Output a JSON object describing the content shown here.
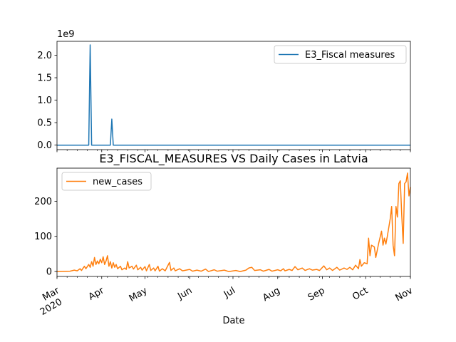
{
  "chart_data": [
    {
      "type": "line",
      "title": "",
      "xlabel": "",
      "ylabel": "",
      "y_offset_label": "1e9",
      "ylim": [
        -0.1,
        2.31
      ],
      "yticks": [
        {
          "v": 0.0,
          "label": "0.0"
        },
        {
          "v": 0.5,
          "label": "0.5"
        },
        {
          "v": 1.0,
          "label": "1.0"
        },
        {
          "v": 1.5,
          "label": "1.5"
        },
        {
          "v": 2.0,
          "label": "2.0"
        }
      ],
      "legend": "top-right",
      "x_start": "2020-03-01",
      "x_end": "2020-11-01",
      "series": [
        {
          "name": "E3_Fiscal measures",
          "color": "#1f77b4",
          "points": [
            [
              "2020-03-01",
              0
            ],
            [
              "2020-03-23",
              0
            ],
            [
              "2020-03-24",
              2.23
            ],
            [
              "2020-03-25",
              0
            ],
            [
              "2020-04-07",
              0
            ],
            [
              "2020-04-08",
              0.58
            ],
            [
              "2020-04-09",
              0
            ],
            [
              "2020-11-01",
              0
            ]
          ]
        }
      ]
    },
    {
      "type": "line",
      "title": "E3_FISCAL_MEASURES VS Daily Cases in Latvia",
      "xlabel": "Date",
      "ylabel": "",
      "ylim": [
        -14,
        294
      ],
      "yticks": [
        {
          "v": 0,
          "label": "0"
        },
        {
          "v": 100,
          "label": "100"
        },
        {
          "v": 200,
          "label": "200"
        }
      ],
      "legend": "top-left",
      "x_start": "2020-03-01",
      "x_end": "2020-11-01",
      "xticks": [
        {
          "date": "2020-03-01",
          "label": "Mar",
          "sub": "2020"
        },
        {
          "date": "2020-04-01",
          "label": "Apr"
        },
        {
          "date": "2020-05-01",
          "label": "May"
        },
        {
          "date": "2020-06-01",
          "label": "Jun"
        },
        {
          "date": "2020-07-01",
          "label": "Jul"
        },
        {
          "date": "2020-08-01",
          "label": "Aug"
        },
        {
          "date": "2020-09-01",
          "label": "Sep"
        },
        {
          "date": "2020-10-01",
          "label": "Oct"
        },
        {
          "date": "2020-11-01",
          "label": "Nov"
        }
      ],
      "series": [
        {
          "name": "new_cases",
          "color": "#ff7f0e",
          "points": [
            [
              "2020-03-01",
              0
            ],
            [
              "2020-03-10",
              1
            ],
            [
              "2020-03-13",
              4
            ],
            [
              "2020-03-15",
              2
            ],
            [
              "2020-03-17",
              8
            ],
            [
              "2020-03-18",
              3
            ],
            [
              "2020-03-20",
              15
            ],
            [
              "2020-03-21",
              8
            ],
            [
              "2020-03-23",
              20
            ],
            [
              "2020-03-24",
              12
            ],
            [
              "2020-03-25",
              28
            ],
            [
              "2020-03-26",
              15
            ],
            [
              "2020-03-27",
              40
            ],
            [
              "2020-03-28",
              20
            ],
            [
              "2020-03-29",
              30
            ],
            [
              "2020-03-30",
              22
            ],
            [
              "2020-03-31",
              35
            ],
            [
              "2020-04-01",
              25
            ],
            [
              "2020-04-02",
              42
            ],
            [
              "2020-04-03",
              20
            ],
            [
              "2020-04-04",
              30
            ],
            [
              "2020-04-05",
              45
            ],
            [
              "2020-04-06",
              15
            ],
            [
              "2020-04-07",
              28
            ],
            [
              "2020-04-08",
              10
            ],
            [
              "2020-04-09",
              25
            ],
            [
              "2020-04-10",
              12
            ],
            [
              "2020-04-11",
              20
            ],
            [
              "2020-04-12",
              8
            ],
            [
              "2020-04-14",
              15
            ],
            [
              "2020-04-15",
              5
            ],
            [
              "2020-04-17",
              10
            ],
            [
              "2020-04-18",
              6
            ],
            [
              "2020-04-19",
              28
            ],
            [
              "2020-04-20",
              10
            ],
            [
              "2020-04-22",
              15
            ],
            [
              "2020-04-23",
              7
            ],
            [
              "2020-04-25",
              18
            ],
            [
              "2020-04-26",
              5
            ],
            [
              "2020-04-28",
              12
            ],
            [
              "2020-04-29",
              4
            ],
            [
              "2020-05-01",
              14
            ],
            [
              "2020-05-02",
              2
            ],
            [
              "2020-05-04",
              20
            ],
            [
              "2020-05-05",
              3
            ],
            [
              "2020-05-07",
              10
            ],
            [
              "2020-05-08",
              2
            ],
            [
              "2020-05-10",
              15
            ],
            [
              "2020-05-11",
              1
            ],
            [
              "2020-05-13",
              8
            ],
            [
              "2020-05-15",
              2
            ],
            [
              "2020-05-18",
              26
            ],
            [
              "2020-05-19",
              3
            ],
            [
              "2020-05-21",
              10
            ],
            [
              "2020-05-22",
              2
            ],
            [
              "2020-05-25",
              8
            ],
            [
              "2020-05-27",
              2
            ],
            [
              "2020-06-01",
              6
            ],
            [
              "2020-06-03",
              1
            ],
            [
              "2020-06-06",
              4
            ],
            [
              "2020-06-09",
              1
            ],
            [
              "2020-06-12",
              7
            ],
            [
              "2020-06-14",
              0
            ],
            [
              "2020-06-18",
              5
            ],
            [
              "2020-06-20",
              1
            ],
            [
              "2020-06-25",
              4
            ],
            [
              "2020-06-28",
              0
            ],
            [
              "2020-07-03",
              3
            ],
            [
              "2020-07-06",
              0
            ],
            [
              "2020-07-10",
              4
            ],
            [
              "2020-07-12",
              10
            ],
            [
              "2020-07-14",
              12
            ],
            [
              "2020-07-16",
              3
            ],
            [
              "2020-07-20",
              5
            ],
            [
              "2020-07-22",
              1
            ],
            [
              "2020-07-26",
              6
            ],
            [
              "2020-07-28",
              1
            ],
            [
              "2020-08-01",
              5
            ],
            [
              "2020-08-03",
              2
            ],
            [
              "2020-08-05",
              8
            ],
            [
              "2020-08-06",
              2
            ],
            [
              "2020-08-09",
              6
            ],
            [
              "2020-08-11",
              3
            ],
            [
              "2020-08-13",
              14
            ],
            [
              "2020-08-15",
              5
            ],
            [
              "2020-08-18",
              10
            ],
            [
              "2020-08-20",
              3
            ],
            [
              "2020-08-23",
              8
            ],
            [
              "2020-08-25",
              4
            ],
            [
              "2020-08-28",
              6
            ],
            [
              "2020-08-30",
              3
            ],
            [
              "2020-09-02",
              16
            ],
            [
              "2020-09-04",
              5
            ],
            [
              "2020-09-06",
              10
            ],
            [
              "2020-09-08",
              3
            ],
            [
              "2020-09-11",
              12
            ],
            [
              "2020-09-13",
              4
            ],
            [
              "2020-09-16",
              10
            ],
            [
              "2020-09-18",
              6
            ],
            [
              "2020-09-20",
              12
            ],
            [
              "2020-09-22",
              5
            ],
            [
              "2020-09-24",
              18
            ],
            [
              "2020-09-26",
              8
            ],
            [
              "2020-09-27",
              34
            ],
            [
              "2020-09-28",
              15
            ],
            [
              "2020-09-30",
              25
            ],
            [
              "2020-10-02",
              22
            ],
            [
              "2020-10-03",
              95
            ],
            [
              "2020-10-04",
              45
            ],
            [
              "2020-10-05",
              75
            ],
            [
              "2020-10-07",
              70
            ],
            [
              "2020-10-08",
              40
            ],
            [
              "2020-10-10",
              80
            ],
            [
              "2020-10-12",
              115
            ],
            [
              "2020-10-13",
              75
            ],
            [
              "2020-10-14",
              95
            ],
            [
              "2020-10-15",
              78
            ],
            [
              "2020-10-16",
              100
            ],
            [
              "2020-10-18",
              150
            ],
            [
              "2020-10-19",
              185
            ],
            [
              "2020-10-20",
              75
            ],
            [
              "2020-10-21",
              45
            ],
            [
              "2020-10-22",
              185
            ],
            [
              "2020-10-23",
              155
            ],
            [
              "2020-10-24",
              250
            ],
            [
              "2020-10-25",
              258
            ],
            [
              "2020-10-26",
              160
            ],
            [
              "2020-10-27",
              80
            ],
            [
              "2020-10-28",
              250
            ],
            [
              "2020-10-29",
              255
            ],
            [
              "2020-10-30",
              280
            ],
            [
              "2020-10-31",
              215
            ],
            [
              "2020-11-01",
              240
            ]
          ]
        }
      ]
    }
  ]
}
